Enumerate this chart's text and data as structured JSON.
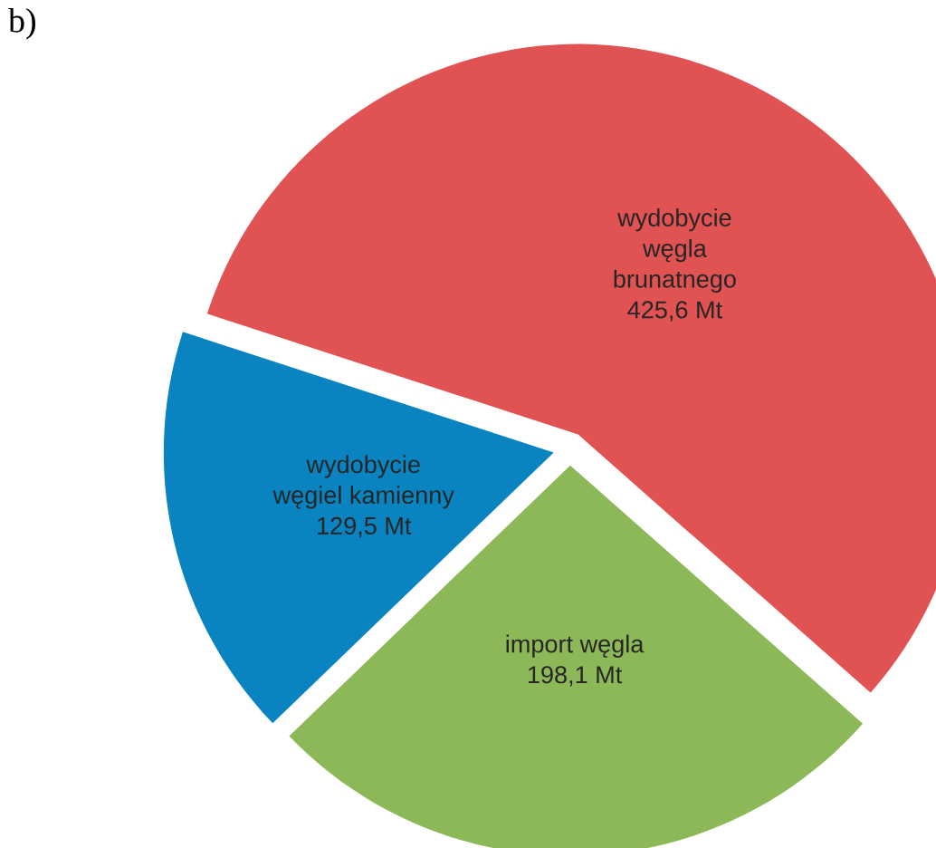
{
  "chart_data": {
    "type": "pie",
    "title": "b)",
    "categories": [
      "wydobycie węgla brunatnego",
      "import węgla",
      "wydobycie węgiel kamienny"
    ],
    "values": [
      425.6,
      198.1,
      129.5
    ],
    "value_labels": [
      "425,6 Mt",
      "198,1 Mt",
      "129,5 Mt"
    ],
    "colors": [
      "#e15252",
      "#8db857",
      "#0a84c1"
    ]
  }
}
